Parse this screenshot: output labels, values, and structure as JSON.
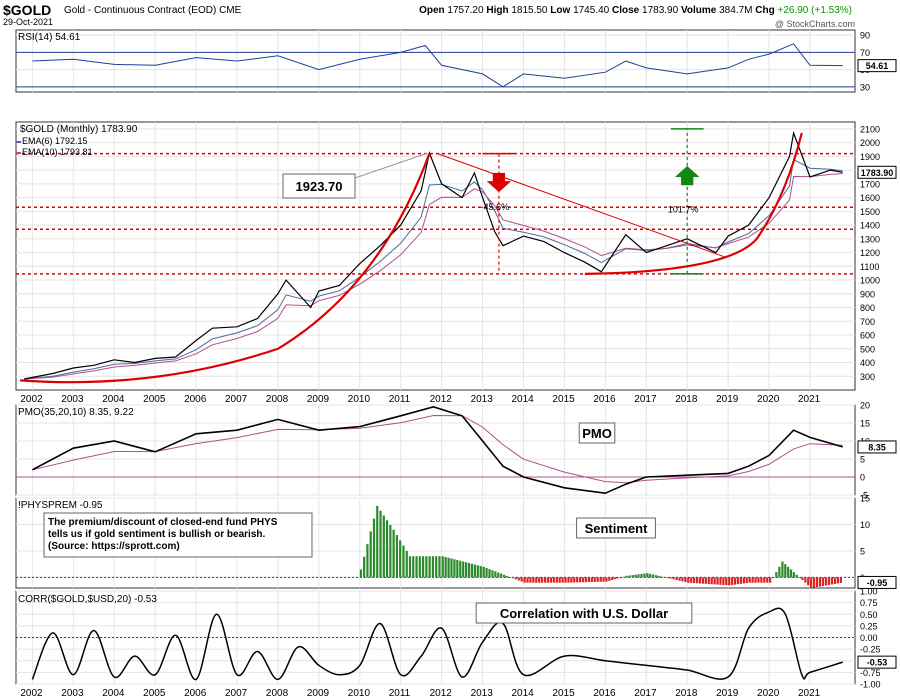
{
  "header": {
    "symbol": "$GOLD",
    "description": "Gold - Continuous Contract (EOD)",
    "exchange": "CME",
    "date": "29-Oct-2021",
    "open_label": "Open",
    "open": "1757.20",
    "high_label": "High",
    "high": "1815.50",
    "low_label": "Low",
    "low": "1745.40",
    "close_label": "Close",
    "close": "1783.90",
    "volume_label": "Volume",
    "volume": "384.7M",
    "chg_label": "Chg",
    "chg": "+26.90 (+1.53%)",
    "brand": "@ StockCharts.com"
  },
  "colors": {
    "price": "#000000",
    "ema6": "#4a6aa0",
    "ema10": "#b0508a",
    "trend": "#dd0000",
    "up_arrow": "#118811",
    "down_arrow": "#dd0000",
    "histogram_pos": "#2a8a2a",
    "histogram_neg": "#dd2222",
    "rsi_fill": "#1f3f99"
  },
  "chart_data": [
    {
      "type": "line",
      "panel": "rsi",
      "legend": "RSI(14) 54.61",
      "last_value": "54.61",
      "ylim": [
        24,
        96
      ],
      "y_ticks": [
        "90",
        "70",
        "50",
        "30"
      ],
      "levels": [
        70,
        30
      ],
      "x": [
        2002,
        2003,
        2004,
        2005,
        2006,
        2007,
        2008,
        2009,
        2010,
        2011,
        2011.6,
        2012,
        2013,
        2013.5,
        2014,
        2015,
        2016,
        2016.5,
        2017,
        2018,
        2019,
        2019.5,
        2020,
        2020.6,
        2021,
        2021.8
      ],
      "values": [
        60,
        62,
        56,
        55,
        64,
        60,
        66,
        50,
        62,
        70,
        78,
        55,
        45,
        30,
        45,
        40,
        47,
        60,
        52,
        45,
        52,
        62,
        68,
        80,
        55,
        54.61
      ]
    },
    {
      "type": "line",
      "panel": "price",
      "legend": "$GOLD (Monthly) 1783.90",
      "ema_legends": [
        "EMA(6) 1792.15",
        "EMA(10) 1793.81"
      ],
      "last_value": "1783.90",
      "ylim": [
        200,
        2150
      ],
      "y_ticks": [
        "2100",
        "2000",
        "1900",
        "1800",
        "1700",
        "1600",
        "1500",
        "1400",
        "1300",
        "1200",
        "1100",
        "1000",
        "900",
        "800",
        "700",
        "600",
        "500",
        "400",
        "300"
      ],
      "x_ticks": [
        "2002",
        "2003",
        "2004",
        "2005",
        "2006",
        "2007",
        "2008",
        "2009",
        "2010",
        "2011",
        "2012",
        "2013",
        "2014",
        "2015",
        "2016",
        "2017",
        "2018",
        "2019",
        "2020",
        "2021"
      ],
      "x": [
        2001.8,
        2002.5,
        2003,
        2003.5,
        2004,
        2004.5,
        2005,
        2005.5,
        2006,
        2006.4,
        2007,
        2007.5,
        2008,
        2008.2,
        2008.8,
        2009,
        2009.5,
        2010,
        2010.5,
        2011,
        2011.5,
        2011.7,
        2012,
        2012.5,
        2012.8,
        2013,
        2013.3,
        2013.5,
        2014,
        2014.5,
        2015,
        2015.5,
        2015.9,
        2016.5,
        2017,
        2017.5,
        2018,
        2018.7,
        2019,
        2019.5,
        2020,
        2020.5,
        2020.6,
        2021,
        2021.5,
        2021.8
      ],
      "values": [
        280,
        320,
        360,
        380,
        420,
        400,
        430,
        440,
        560,
        650,
        660,
        720,
        900,
        1000,
        800,
        920,
        960,
        1120,
        1250,
        1400,
        1650,
        1923.7,
        1700,
        1600,
        1780,
        1600,
        1350,
        1250,
        1320,
        1280,
        1200,
        1130,
        1060,
        1330,
        1200,
        1250,
        1300,
        1200,
        1320,
        1400,
        1600,
        1900,
        2070,
        1750,
        1800,
        1783.9
      ],
      "annotations": [
        {
          "label": "1923.70",
          "x": 2011.7,
          "y": 1923.7
        },
        {
          "label": "-45.6%",
          "x": 2013.3,
          "y": 1540
        },
        {
          "label": "101.7%",
          "x": 2018,
          "y": 1520
        }
      ],
      "levels": [
        1920,
        1530,
        1370,
        1045
      ],
      "target_level": 2100
    },
    {
      "type": "line",
      "panel": "pmo",
      "legend": "PMO(35,20,10) 8.35, 9.22",
      "title_box": "PMO",
      "last_value": "8.35",
      "ylim": [
        -5,
        20
      ],
      "y_ticks": [
        "20",
        "15",
        "10",
        "5",
        "0",
        "-5"
      ],
      "x": [
        2002,
        2003,
        2004,
        2005,
        2006,
        2007,
        2008,
        2009,
        2010,
        2011,
        2011.8,
        2012.5,
        2013,
        2013.5,
        2014,
        2015,
        2016,
        2016.5,
        2017,
        2018,
        2019,
        2019.5,
        2020,
        2020.6,
        2021,
        2021.8
      ],
      "values": [
        2,
        8,
        10,
        7,
        12,
        13,
        16,
        13,
        14,
        17,
        19.5,
        17,
        10,
        3,
        0,
        -3,
        -4.5,
        -2,
        0,
        0.5,
        1,
        3,
        6,
        13,
        11,
        8.35
      ]
    },
    {
      "type": "bar",
      "panel": "sentiment",
      "legend": "!PHYSPREM -0.95",
      "title_box": "Sentiment",
      "note_lines": [
        "The premium/discount of closed-end fund PHYS",
        "tells us if gold sentiment is bullish or bearish.",
        "(Source: https://sprott.com)"
      ],
      "last_value": "-0.95",
      "ylim": [
        -2,
        15
      ],
      "y_ticks": [
        "15",
        "10",
        "5",
        "0"
      ],
      "x": [
        2010,
        2010.4,
        2010.8,
        2011.2,
        2011.6,
        2012,
        2012.5,
        2013,
        2013.5,
        2014,
        2015,
        2016,
        2016.5,
        2017,
        2018,
        2019,
        2019.5,
        2020,
        2020.3,
        2021,
        2021.8
      ],
      "values": [
        1.5,
        13.5,
        9,
        4,
        4,
        4,
        3,
        2,
        0.5,
        -1,
        -1,
        -0.8,
        0.3,
        0.8,
        -1,
        -1.5,
        -1,
        -1,
        3,
        -2,
        -0.95
      ]
    },
    {
      "type": "line",
      "panel": "correlation",
      "legend": "CORR($GOLD,$USD,20) -0.53",
      "title_box": "Correlation with U.S. Dollar",
      "last_value": "-0.53",
      "ylim": [
        -1.0,
        1.0
      ],
      "y_ticks": [
        "1.00",
        "0.75",
        "0.50",
        "0.25",
        "0.00",
        "-0.25",
        "-0.50",
        "-0.75",
        "-1.00"
      ],
      "x": [
        2002,
        2002.5,
        2003,
        2003.5,
        2004,
        2004.5,
        2005,
        2005.5,
        2006,
        2006.5,
        2007,
        2007.5,
        2008,
        2008.5,
        2009,
        2009.5,
        2010,
        2010.5,
        2011,
        2011.5,
        2012,
        2012.5,
        2013,
        2013.5,
        2014,
        2015,
        2016,
        2017,
        2018,
        2019,
        2019.5,
        2020,
        2020.4,
        2020.8,
        2021,
        2021.8
      ],
      "values": [
        -0.9,
        0.1,
        -0.8,
        0.15,
        -0.85,
        -0.4,
        -0.8,
        0.05,
        -0.9,
        0.5,
        -0.8,
        -0.3,
        -0.9,
        -0.2,
        -0.6,
        -0.8,
        -0.6,
        0.3,
        -0.8,
        -0.4,
        0.2,
        -0.85,
        -0.1,
        0.3,
        -0.8,
        -0.4,
        -0.5,
        -0.6,
        -0.7,
        -0.85,
        0.2,
        0.55,
        0.5,
        -0.8,
        -0.75,
        -0.53
      ]
    }
  ]
}
